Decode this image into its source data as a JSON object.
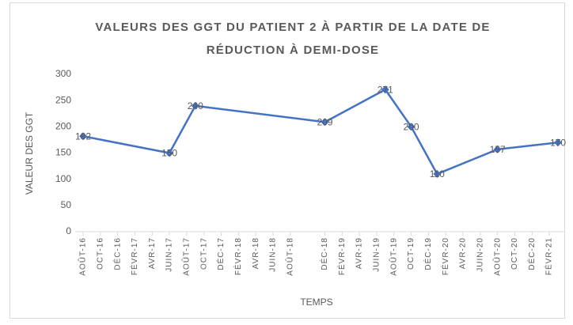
{
  "chart_data": {
    "type": "line",
    "title": "VALEURS DES GGT DU PATIENT 2 À PARTIR DE LA DATE DE RÉDUCTION À DEMI-DOSE",
    "x_label": "TEMPS",
    "y_label": "VALEUR DES GGT",
    "x": [
      "2016-08",
      "2017-06",
      "2017-09",
      "2018-12",
      "2019-07",
      "2019-10",
      "2020-01",
      "2020-08",
      "2021-03"
    ],
    "series": [
      {
        "name": "GGT",
        "color": "#4472c4",
        "values": [
          182,
          150,
          240,
          209,
          271,
          200,
          110,
          157,
          170
        ]
      }
    ],
    "xlim": [
      "2016-08",
      "2021-03"
    ],
    "xticks": [
      {
        "value": "2016-08",
        "label": "AOÛT-16"
      },
      {
        "value": "2016-10",
        "label": "OCT-16"
      },
      {
        "value": "2016-12",
        "label": "DÉC-16"
      },
      {
        "value": "2017-02",
        "label": "FÉVR-17"
      },
      {
        "value": "2017-04",
        "label": "AVR-17"
      },
      {
        "value": "2017-06",
        "label": "JUIN-17"
      },
      {
        "value": "2017-08",
        "label": "AOÛT-17"
      },
      {
        "value": "2017-10",
        "label": "OCT-17"
      },
      {
        "value": "2017-12",
        "label": "DÉC-17"
      },
      {
        "value": "2018-02",
        "label": "FÉVR-18"
      },
      {
        "value": "2018-04",
        "label": "AVR-18"
      },
      {
        "value": "2018-06",
        "label": "JUIN-18"
      },
      {
        "value": "2018-08",
        "label": "AOÛT-18"
      },
      {
        "value": "2018-12",
        "label": "DÉC-18"
      },
      {
        "value": "2019-02",
        "label": "FÉVR-19"
      },
      {
        "value": "2019-04",
        "label": "AVR-19"
      },
      {
        "value": "2019-06",
        "label": "JUIN-19"
      },
      {
        "value": "2019-08",
        "label": "AOÛT-19"
      },
      {
        "value": "2019-10",
        "label": "OCT-19"
      },
      {
        "value": "2019-12",
        "label": "DÉC-19"
      },
      {
        "value": "2020-02",
        "label": "FÉVR-20"
      },
      {
        "value": "2020-04",
        "label": "AVR-20"
      },
      {
        "value": "2020-06",
        "label": "JUIN-20"
      },
      {
        "value": "2020-08",
        "label": "AOÛT-20"
      },
      {
        "value": "2020-10",
        "label": "OCT-20"
      },
      {
        "value": "2020-12",
        "label": "DÉC-20"
      },
      {
        "value": "2021-02",
        "label": "FÉVR-21"
      }
    ],
    "ylim": [
      0,
      300
    ],
    "yticks": [
      0,
      50,
      100,
      150,
      200,
      250,
      300
    ],
    "grid": false,
    "data_labels": true
  }
}
